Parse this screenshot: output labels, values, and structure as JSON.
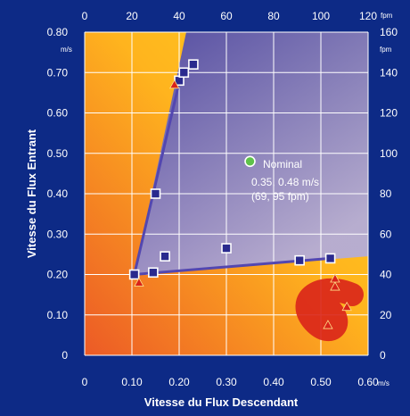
{
  "chart_data": {
    "type": "scatter",
    "xlabel": "Vitesse du Flux Descendant",
    "ylabel": "Vitesse du Flux Entrant",
    "xlim": [
      0,
      0.6
    ],
    "ylim": [
      0,
      0.8
    ],
    "x_unit": "m/s",
    "y_unit": "m/s",
    "top_unit": "fpm",
    "right_unit": "fpm",
    "x_ticks": [
      {
        "value": 0,
        "label": "0"
      },
      {
        "value": 0.1,
        "label": "0.10"
      },
      {
        "value": 0.2,
        "label": "0.20"
      },
      {
        "value": 0.3,
        "label": "0.30"
      },
      {
        "value": 0.4,
        "label": "0.40"
      },
      {
        "value": 0.5,
        "label": "0.50"
      },
      {
        "value": 0.6,
        "label": "0.60"
      }
    ],
    "y_ticks": [
      {
        "value": 0,
        "label": "0"
      },
      {
        "value": 0.1,
        "label": "0.10"
      },
      {
        "value": 0.2,
        "label": "0.20"
      },
      {
        "value": 0.3,
        "label": "0.30"
      },
      {
        "value": 0.4,
        "label": "0.40"
      },
      {
        "value": 0.5,
        "label": "0.50"
      },
      {
        "value": 0.6,
        "label": "0.60"
      },
      {
        "value": 0.7,
        "label": "0.70"
      },
      {
        "value": 0.8,
        "label": "0.80"
      }
    ],
    "top_ticks": [
      {
        "value": 0,
        "label": "0"
      },
      {
        "value": 20,
        "label": "20"
      },
      {
        "value": 40,
        "label": "40"
      },
      {
        "value": 60,
        "label": "60"
      },
      {
        "value": 80,
        "label": "80"
      },
      {
        "value": 100,
        "label": "100"
      },
      {
        "value": 120,
        "label": "120"
      }
    ],
    "right_ticks": [
      {
        "value": 0,
        "label": "0"
      },
      {
        "value": 20,
        "label": "20"
      },
      {
        "value": 40,
        "label": "40"
      },
      {
        "value": 60,
        "label": "60"
      },
      {
        "value": 80,
        "label": "80"
      },
      {
        "value": 100,
        "label": "100"
      },
      {
        "value": 120,
        "label": "120"
      },
      {
        "value": 140,
        "label": "140"
      },
      {
        "value": 160,
        "label": "160"
      }
    ],
    "grid": true,
    "envelope": [
      [
        0.6,
        0.245
      ],
      [
        0.105,
        0.2
      ],
      [
        0.215,
        0.8
      ],
      [
        0.6,
        0.8
      ]
    ],
    "boundary_line": [
      [
        0.52,
        0.24
      ],
      [
        0.105,
        0.2
      ],
      [
        0.205,
        0.7
      ]
    ],
    "squares": [
      [
        0.105,
        0.2
      ],
      [
        0.145,
        0.205
      ],
      [
        0.17,
        0.245
      ],
      [
        0.3,
        0.265
      ],
      [
        0.455,
        0.235
      ],
      [
        0.52,
        0.24
      ],
      [
        0.15,
        0.4
      ],
      [
        0.2,
        0.68
      ],
      [
        0.21,
        0.7
      ],
      [
        0.23,
        0.72
      ]
    ],
    "triangles": [
      [
        0.115,
        0.18
      ],
      [
        0.19,
        0.67
      ],
      [
        0.515,
        0.075
      ],
      [
        0.53,
        0.17
      ],
      [
        0.53,
        0.19
      ],
      [
        0.555,
        0.12
      ]
    ],
    "nominal": {
      "x": 0.35,
      "y": 0.48,
      "lines": [
        "Nominal",
        "0.35, 0.48 m/s",
        "(69, 95 fpm)"
      ]
    },
    "colors": {
      "background": "#0d2a86",
      "gradient_orange": "#ec5a26",
      "gradient_yellow": "#ffd21e",
      "envelope_fill": "#5f55b8",
      "boundary_line": "#5347b0",
      "square_fill": "#2a2a8e",
      "triangle_fill": "#d9231a",
      "nominal_fill": "#5ec24a"
    }
  }
}
